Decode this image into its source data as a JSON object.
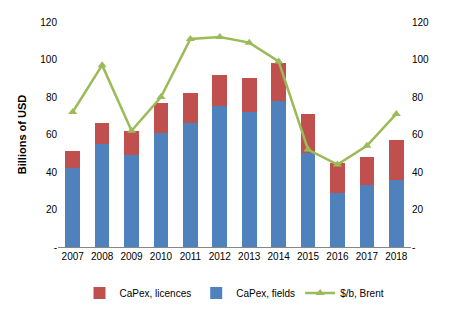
{
  "chart_data": {
    "type": "bar",
    "stacked": true,
    "grid": false,
    "legend": "bottom",
    "y_label": "Billions of USD",
    "categories": [
      "2007",
      "2008",
      "2009",
      "2010",
      "2011",
      "2012",
      "2013",
      "2014",
      "2015",
      "2016",
      "2017",
      "2018"
    ],
    "series": [
      {
        "name": "CaPex, licences",
        "type": "bar",
        "color": "#c0504d",
        "values": [
          9,
          11,
          13,
          16,
          16,
          17,
          18,
          20,
          21,
          16,
          15,
          21
        ]
      },
      {
        "name": "CaPex, fields",
        "type": "bar",
        "color": "#4f81bd",
        "values": [
          42,
          55,
          49,
          61,
          66,
          75,
          72,
          78,
          50,
          29,
          33,
          36
        ]
      },
      {
        "name": "$/b, Brent",
        "type": "line",
        "axis": "y2",
        "color": "#9bbb59",
        "marker": "triangle-up",
        "values": [
          72,
          97,
          62,
          80,
          111,
          112,
          109,
          99,
          52,
          44,
          54,
          71
        ]
      }
    ],
    "ylim": [
      0,
      120
    ],
    "yticks": [
      {
        "value": 0,
        "label": "-"
      },
      20,
      40,
      60,
      80,
      100,
      120
    ],
    "y2lim": [
      0,
      120
    ],
    "y2ticks": [
      {
        "value": 0,
        "label": "-"
      },
      20,
      40,
      60,
      80,
      100,
      120
    ]
  }
}
